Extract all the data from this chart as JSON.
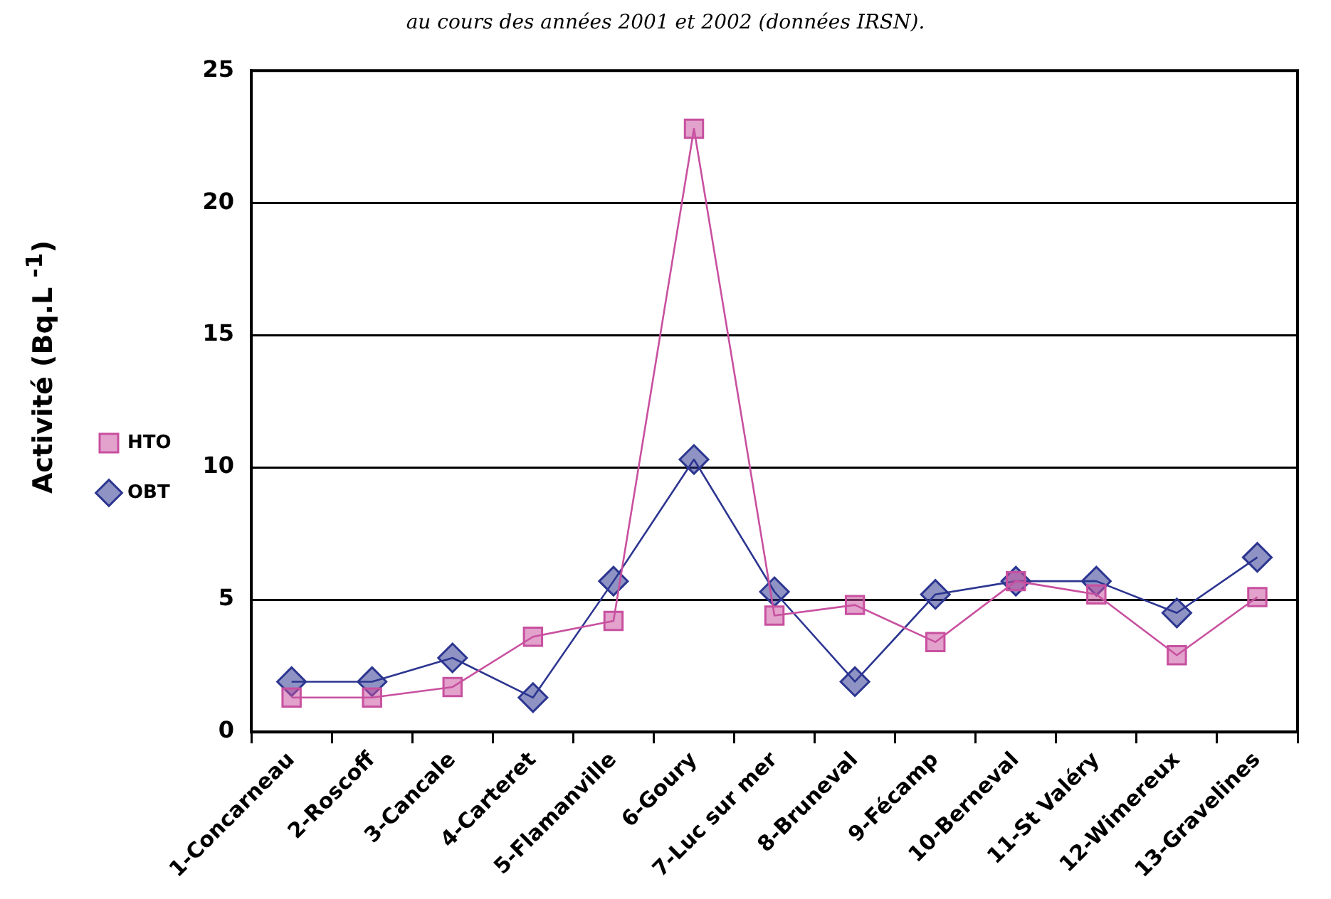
{
  "chart_data": {
    "type": "line",
    "annotations": [
      "au cours des années 2001 et 2002 (données IRSN)."
    ],
    "ylabel": "Activité  (Bq.L $^{-1}$)",
    "categories": [
      "1-Concarneau",
      "2-Roscoff",
      "3-Cancale",
      "4-Carteret",
      "5-Flamanville",
      "6-Goury",
      "7-Luc sur mer",
      "8-Bruneval",
      "9-Fécamp",
      "10-Berneval",
      "11-St Valéry",
      "12-Wimereux",
      "13-Gravelines"
    ],
    "series": [
      {
        "name": "HTO",
        "color": "#c8509f",
        "marker": "square",
        "values": [
          1.3,
          1.3,
          1.7,
          3.6,
          4.2,
          22.8,
          4.4,
          4.8,
          3.4,
          5.7,
          5.2,
          2.9,
          5.1
        ]
      },
      {
        "name": "OBT",
        "color": "#2c3590",
        "marker": "diamond",
        "values": [
          1.9,
          1.9,
          2.8,
          1.3,
          5.7,
          10.3,
          5.3,
          1.9,
          5.2,
          5.7,
          5.7,
          4.5,
          6.6
        ]
      }
    ],
    "ylim": [
      0,
      25
    ],
    "yticks": [
      0,
      5,
      10,
      15,
      20,
      25
    ],
    "grid": "y",
    "legend": "left",
    "line_style": "solid"
  }
}
